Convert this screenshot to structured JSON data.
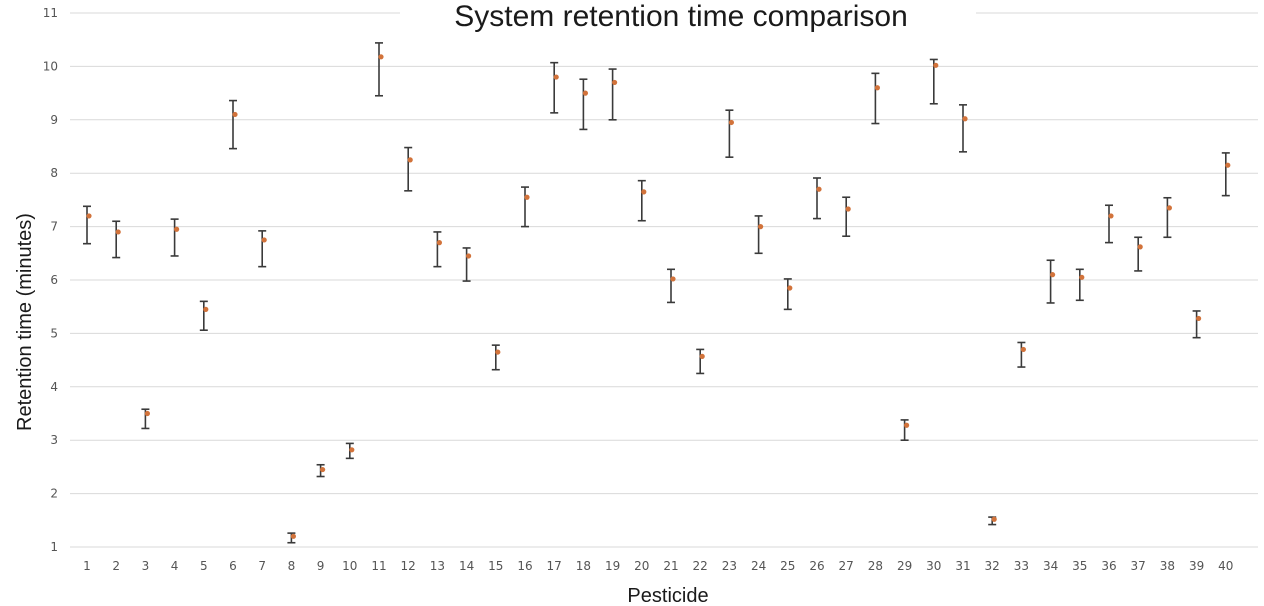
{
  "chart_data": {
    "type": "scatter",
    "title": "System retention time comparison",
    "xlabel": "Pesticide",
    "ylabel": "Retention time (minutes)",
    "ylim": [
      1,
      11
    ],
    "yticks": [
      1,
      2,
      3,
      4,
      5,
      6,
      7,
      8,
      9,
      10,
      11
    ],
    "grid": "horizontal",
    "categories": [
      "1",
      "2",
      "3",
      "4",
      "5",
      "6",
      "7",
      "8",
      "9",
      "10",
      "11",
      "12",
      "13",
      "14",
      "15",
      "16",
      "17",
      "18",
      "19",
      "20",
      "21",
      "22",
      "23",
      "24",
      "25",
      "26",
      "27",
      "28",
      "29",
      "30",
      "31",
      "32",
      "33",
      "34",
      "35",
      "36",
      "37",
      "38",
      "39",
      "40"
    ],
    "series": [
      {
        "values": [
          7.2,
          6.9,
          3.5,
          6.95,
          5.45,
          9.1,
          6.75,
          1.2,
          2.45,
          2.82,
          10.18,
          8.25,
          6.7,
          6.45,
          4.65,
          7.55,
          9.8,
          9.5,
          9.7,
          7.65,
          6.02,
          4.57,
          8.95,
          7.0,
          5.85,
          7.7,
          7.33,
          9.6,
          3.28,
          10.02,
          9.02,
          1.52,
          4.7,
          6.1,
          6.05,
          7.2,
          6.62,
          7.35,
          5.28,
          8.15
        ],
        "error_low": [
          6.68,
          6.42,
          3.22,
          6.45,
          5.06,
          8.46,
          6.25,
          1.08,
          2.32,
          2.66,
          9.45,
          7.67,
          6.25,
          5.98,
          4.32,
          7.0,
          9.13,
          8.82,
          9.0,
          7.11,
          5.58,
          4.25,
          8.3,
          6.5,
          5.45,
          7.15,
          6.82,
          8.93,
          3.0,
          9.3,
          8.4,
          1.42,
          4.37,
          5.57,
          5.62,
          6.7,
          6.17,
          6.8,
          4.92,
          7.58
        ],
        "error_high": [
          7.38,
          7.1,
          3.58,
          7.14,
          5.6,
          9.36,
          6.92,
          1.26,
          2.54,
          2.94,
          10.44,
          8.48,
          6.9,
          6.6,
          4.78,
          7.74,
          10.07,
          9.76,
          9.95,
          7.86,
          6.2,
          4.7,
          9.18,
          7.2,
          6.02,
          7.91,
          7.55,
          9.87,
          3.38,
          10.13,
          9.28,
          1.56,
          4.83,
          6.37,
          6.2,
          7.4,
          6.8,
          7.54,
          5.42,
          8.38
        ]
      }
    ],
    "colors": {
      "marker": "#d2733b",
      "errorbar": "#3a3a3a",
      "grid": "#d9d9d9",
      "text": "#555555"
    }
  }
}
